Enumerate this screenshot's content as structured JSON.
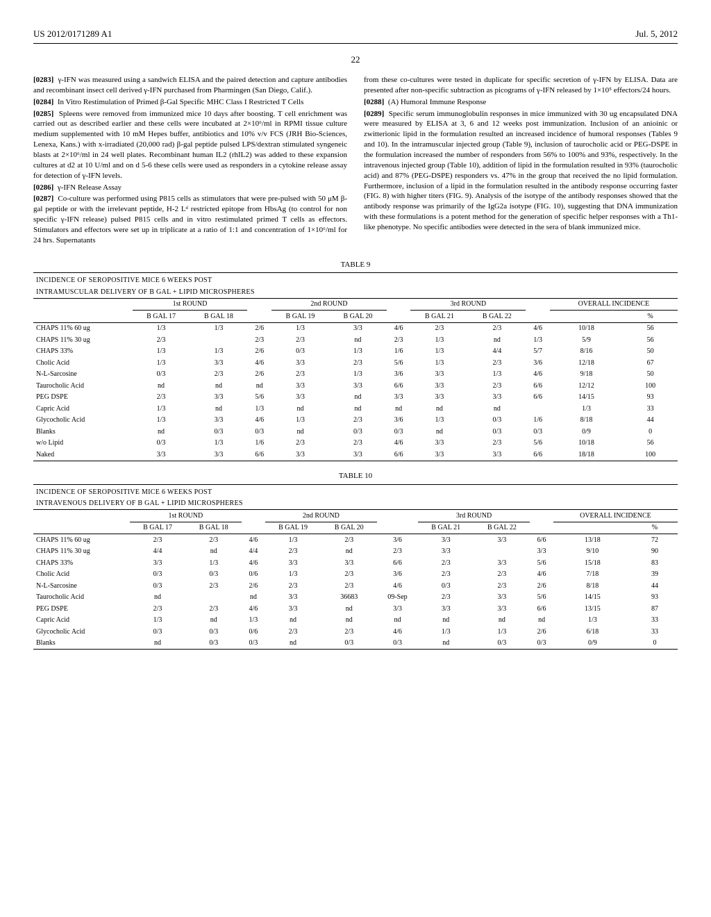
{
  "header": {
    "left": "US 2012/0171289 A1",
    "right": "Jul. 5, 2012"
  },
  "page_number": "22",
  "left_column": {
    "p1_num": "[0283]",
    "p1": "γ-IFN was measured using a sandwich ELISA and the paired detection and capture antibodies and recombinant insect cell derived γ-IFN purchased from Pharmingen (San Diego, Calif.).",
    "p2_num": "[0284]",
    "p2_title": "In Vitro Restimulation of Primed β-Gal Specific MHC Class I Restricted T Cells",
    "p3_num": "[0285]",
    "p3": "Spleens were removed from immunized mice 10 days after boosting. T cell enrichment was carried out as described earlier and these cells were incubated at 2×10⁶/ml in RPMI tissue culture medium supplemented with 10 mM Hepes buffer, antibiotics and 10% v/v FCS (JRH Bio-Sciences, Lenexa, Kans.) with x-irradiated (20,000 rad) β-gal peptide pulsed LPS/dextran stimulated syngeneic blasts at 2×10⁶/ml in 24 well plates. Recombinant human IL2 (rhIL2) was added to these expansion cultures at d2 at 10 U/ml and on d 5-6 these cells were used as responders in a cytokine release assay for detection of γ-IFN levels.",
    "p4_num": "[0286]",
    "p4_title": "γ-IFN Release Assay",
    "p5_num": "[0287]",
    "p5": "Co-culture was performed using P815 cells as stimulators that were pre-pulsed with 50 μM β-gal peptide or with the irrelevant peptide, H-2 Lᵈ restricted epitope from HbsAg (to control for non specific γ-IFN release) pulsed P815 cells and in vitro restimulated primed T cells as effectors. Stimulators and effectors were set up in triplicate at a ratio of 1:1 and concentration of 1×10⁶/ml for 24 hrs. Supernatants"
  },
  "right_column": {
    "p1": "from these co-cultures were tested in duplicate for specific secretion of γ-IFN by ELISA. Data are presented after non-specific subtraction as picograms of γ-IFN released by 1×10⁵ effectors/24 hours.",
    "p2_num": "[0288]",
    "p2_title": "(A) Humoral Immune Response",
    "p3_num": "[0289]",
    "p3": "Specific serum immunoglobulin responses in mice immunized with 30 ug encapsulated DNA were measured by ELISA at 3, 6 and 12 weeks post immunization. Inclusion of an anioinic or zwitterionic lipid in the formulation resulted an increased incidence of humoral responses (Tables 9 and 10). In the intramuscular injected group (Table 9), inclusion of taurocholic acid or PEG-DSPE in the formulation increased the number of responders from 56% to 100% and 93%, respectively. In the intravenous injected group (Table 10), addition of lipid in the formulation resulted in 93% (taurocholic acid) and 87% (PEG-DSPE) responders vs. 47% in the group that received the no lipid formulation. Furthermore, inclusion of a lipid in the formulation resulted in the antibody response occurring faster (FIG. 8) with higher titers (FIG. 9). Analysis of the isotype of the antibody responses showed that the antibody response was primarily of the IgG2a isotype (FIG. 10), suggesting that DNA immunization with these formulations is a potent method for the generation of specific helper responses with a Th1-like phenotype. No specific antibodies were detected in the sera of blank immunized mice."
  },
  "table9": {
    "label": "TABLE 9",
    "caption1": "INCIDENCE OF SEROPOSITIVE MICE 6 WEEKS POST",
    "caption2": "INTRAMUSCULAR DELIVERY OF B GAL + LIPID MICROSPHERES",
    "group_headers": [
      "",
      "1st ROUND",
      "",
      "2nd ROUND",
      "",
      "3rd ROUND",
      "",
      "OVERALL INCIDENCE"
    ],
    "sub_headers": [
      "",
      "B GAL 17",
      "B GAL 18",
      "",
      "B GAL 19",
      "B GAL 20",
      "",
      "B GAL 21",
      "B GAL 22",
      "",
      "",
      "%"
    ],
    "rows": [
      [
        "CHAPS 11% 60 ug",
        "1/3",
        "1/3",
        "2/6",
        "1/3",
        "3/3",
        "4/6",
        "2/3",
        "2/3",
        "4/6",
        "10/18",
        "56"
      ],
      [
        "CHAPS 11% 30 ug",
        "2/3",
        "",
        "2/3",
        "2/3",
        "nd",
        "2/3",
        "1/3",
        "nd",
        "1/3",
        "5/9",
        "56"
      ],
      [
        "CHAPS 33%",
        "1/3",
        "1/3",
        "2/6",
        "0/3",
        "1/3",
        "1/6",
        "1/3",
        "4/4",
        "5/7",
        "8/16",
        "50"
      ],
      [
        "Cholic Acid",
        "1/3",
        "3/3",
        "4/6",
        "3/3",
        "2/3",
        "5/6",
        "1/3",
        "2/3",
        "3/6",
        "12/18",
        "67"
      ],
      [
        "N-L-Sarcosine",
        "0/3",
        "2/3",
        "2/6",
        "2/3",
        "1/3",
        "3/6",
        "3/3",
        "1/3",
        "4/6",
        "9/18",
        "50"
      ],
      [
        "Taurocholic Acid",
        "nd",
        "nd",
        "nd",
        "3/3",
        "3/3",
        "6/6",
        "3/3",
        "2/3",
        "6/6",
        "12/12",
        "100"
      ],
      [
        "PEG DSPE",
        "2/3",
        "3/3",
        "5/6",
        "3/3",
        "nd",
        "3/3",
        "3/3",
        "3/3",
        "6/6",
        "14/15",
        "93"
      ],
      [
        "Capric Acid",
        "1/3",
        "nd",
        "1/3",
        "nd",
        "nd",
        "nd",
        "nd",
        "nd",
        "",
        "1/3",
        "33"
      ],
      [
        "Glycocholic Acid",
        "1/3",
        "3/3",
        "4/6",
        "1/3",
        "2/3",
        "3/6",
        "1/3",
        "0/3",
        "1/6",
        "8/18",
        "44"
      ],
      [
        "Blanks",
        "nd",
        "0/3",
        "0/3",
        "nd",
        "0/3",
        "0/3",
        "nd",
        "0/3",
        "0/3",
        "0/9",
        "0"
      ],
      [
        "w/o Lipid",
        "0/3",
        "1/3",
        "1/6",
        "2/3",
        "2/3",
        "4/6",
        "3/3",
        "2/3",
        "5/6",
        "10/18",
        "56"
      ],
      [
        "Naked",
        "3/3",
        "3/3",
        "6/6",
        "3/3",
        "3/3",
        "6/6",
        "3/3",
        "3/3",
        "6/6",
        "18/18",
        "100"
      ]
    ]
  },
  "table10": {
    "label": "TABLE 10",
    "caption1": "INCIDENCE OF SEROPOSITIVE MICE 6 WEEKS POST",
    "caption2": "INTRAVENOUS DELIVERY OF B GAL + LIPID MICROSPHERES",
    "group_headers": [
      "",
      "1st ROUND",
      "",
      "2nd ROUND",
      "",
      "3rd ROUND",
      "",
      "OVERALL INCIDENCE"
    ],
    "sub_headers": [
      "",
      "B GAL 17",
      "B GAL 18",
      "",
      "B GAL 19",
      "B GAL 20",
      "",
      "B GAL 21",
      "B GAL 22",
      "",
      "",
      "%"
    ],
    "rows": [
      [
        "CHAPS 11% 60 ug",
        "2/3",
        "2/3",
        "4/6",
        "1/3",
        "2/3",
        "3/6",
        "3/3",
        "3/3",
        "6/6",
        "13/18",
        "72"
      ],
      [
        "CHAPS 11% 30 ug",
        "4/4",
        "nd",
        "4/4",
        "2/3",
        "nd",
        "2/3",
        "3/3",
        "",
        "3/3",
        "9/10",
        "90"
      ],
      [
        "CHAPS 33%",
        "3/3",
        "1/3",
        "4/6",
        "3/3",
        "3/3",
        "6/6",
        "2/3",
        "3/3",
        "5/6",
        "15/18",
        "83"
      ],
      [
        "Cholic Acid",
        "0/3",
        "0/3",
        "0/6",
        "1/3",
        "2/3",
        "3/6",
        "2/3",
        "2/3",
        "4/6",
        "7/18",
        "39"
      ],
      [
        "N-L-Sarcosine",
        "0/3",
        "2/3",
        "2/6",
        "2/3",
        "2/3",
        "4/6",
        "0/3",
        "2/3",
        "2/6",
        "8/18",
        "44"
      ],
      [
        "Taurocholic Acid",
        "nd",
        "",
        "nd",
        "3/3",
        "36683",
        "09-Sep",
        "2/3",
        "3/3",
        "5/6",
        "14/15",
        "93"
      ],
      [
        "PEG DSPE",
        "2/3",
        "2/3",
        "4/6",
        "3/3",
        "nd",
        "3/3",
        "3/3",
        "3/3",
        "6/6",
        "13/15",
        "87"
      ],
      [
        "Capric Acid",
        "1/3",
        "nd",
        "1/3",
        "nd",
        "nd",
        "nd",
        "nd",
        "nd",
        "nd",
        "1/3",
        "33"
      ],
      [
        "Glycocholic Acid",
        "0/3",
        "0/3",
        "0/6",
        "2/3",
        "2/3",
        "4/6",
        "1/3",
        "1/3",
        "2/6",
        "6/18",
        "33"
      ],
      [
        "Blanks",
        "nd",
        "0/3",
        "0/3",
        "nd",
        "0/3",
        "0/3",
        "nd",
        "0/3",
        "0/3",
        "0/9",
        "0"
      ]
    ]
  }
}
